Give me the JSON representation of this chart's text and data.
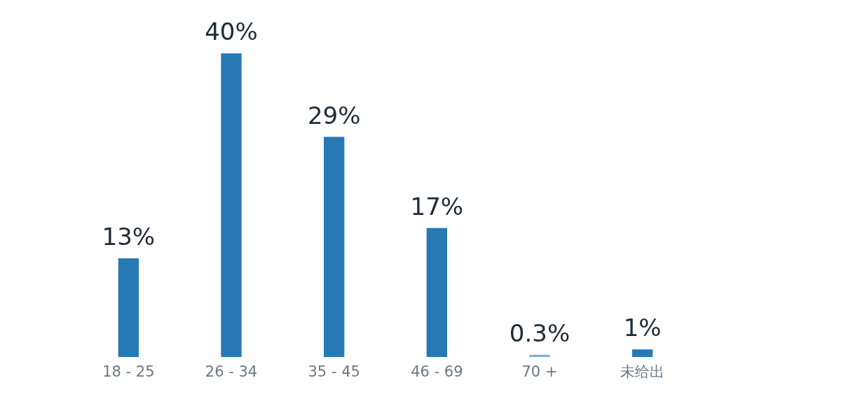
{
  "chart_data": {
    "type": "bar",
    "categories": [
      "18 - 25",
      "26 - 34",
      "35 - 45",
      "46 - 69",
      "70 +",
      "未给出"
    ],
    "values": [
      13,
      40,
      29,
      17,
      0.3,
      1
    ],
    "value_labels": [
      "13%",
      "40%",
      "29%",
      "17%",
      "0.3%",
      "1%"
    ],
    "colors": [
      "#2878b4",
      "#2878b4",
      "#2878b4",
      "#2878b4",
      "#7fb2dc",
      "#2878b4"
    ],
    "tick_labels": "x",
    "grid": false
  }
}
